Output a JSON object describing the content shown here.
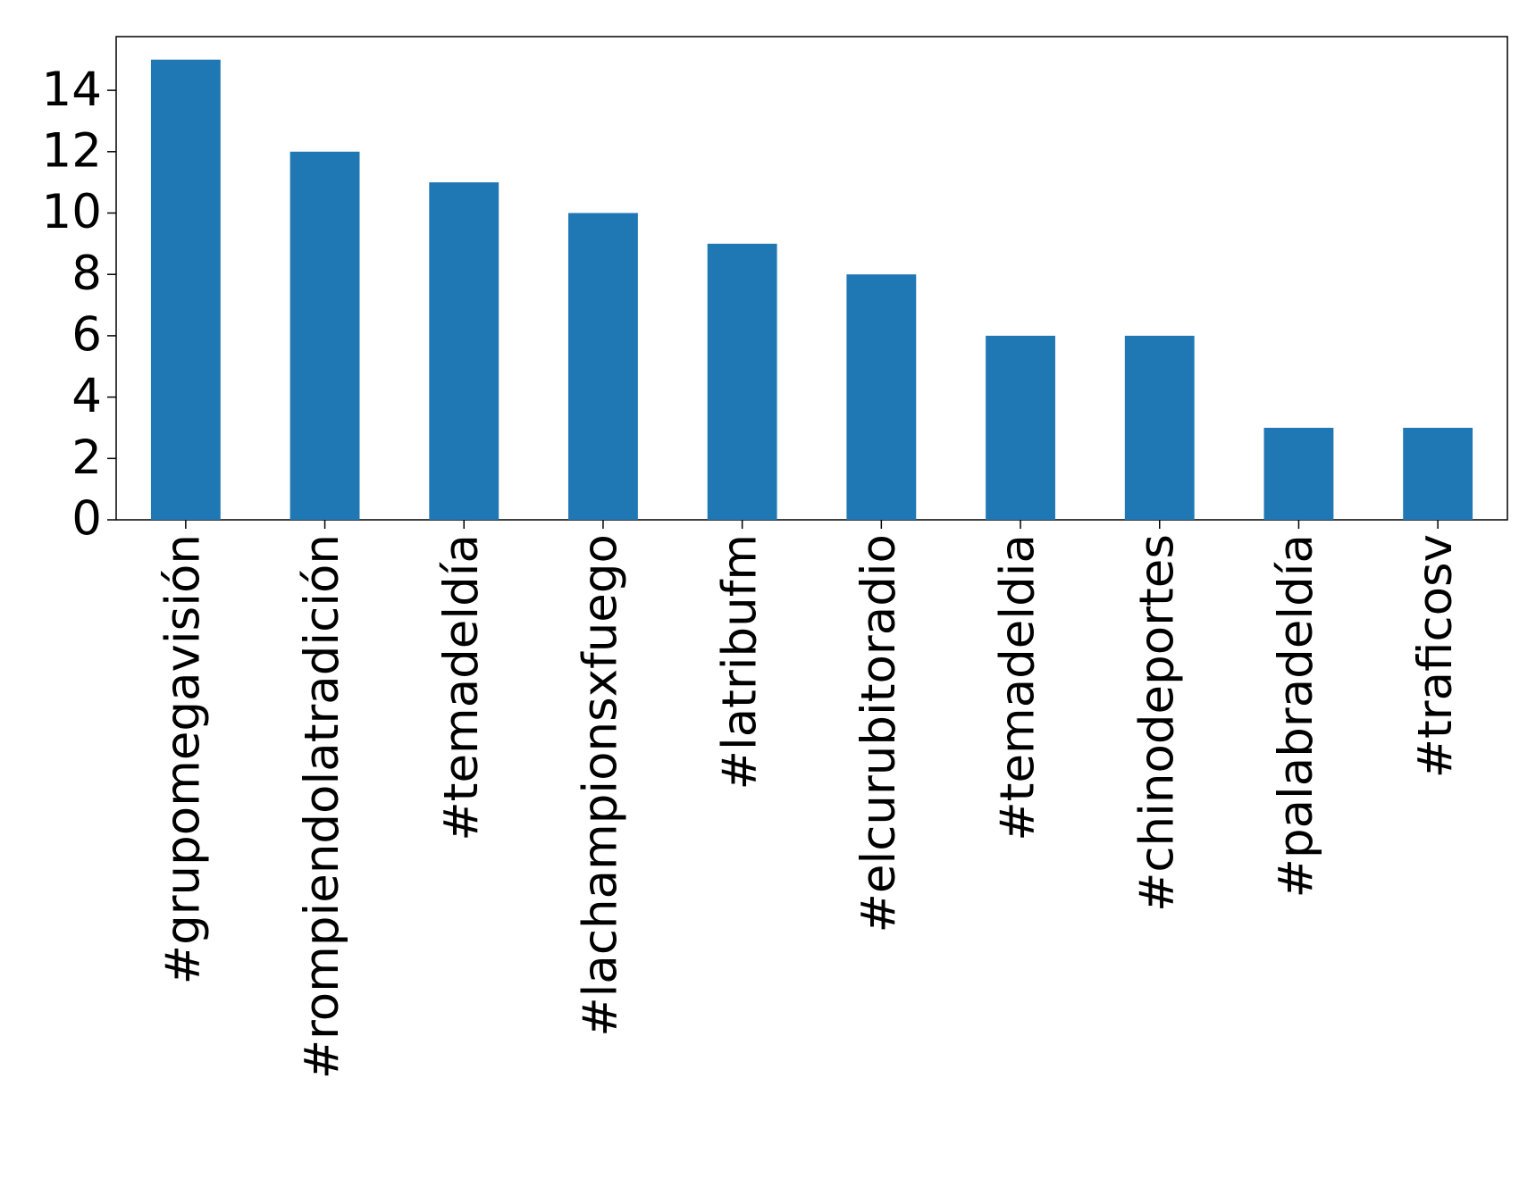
{
  "chart_data": {
    "type": "bar",
    "categories": [
      "#grupomegavisión",
      "#rompiendolatradición",
      "#temadeldía",
      "#lachampionsxfuego",
      "#latribufm",
      "#elcurubitoradio",
      "#temadeldia",
      "#chinodeportes",
      "#palabradeldía",
      "#traficosv"
    ],
    "values": [
      15,
      12,
      11,
      10,
      9,
      8,
      6,
      6,
      3,
      3
    ],
    "color": "#1f77b4",
    "ylim": [
      0,
      15.75
    ],
    "yticks": [
      0,
      2,
      4,
      6,
      8,
      10,
      12,
      14
    ],
    "grid": false
  }
}
